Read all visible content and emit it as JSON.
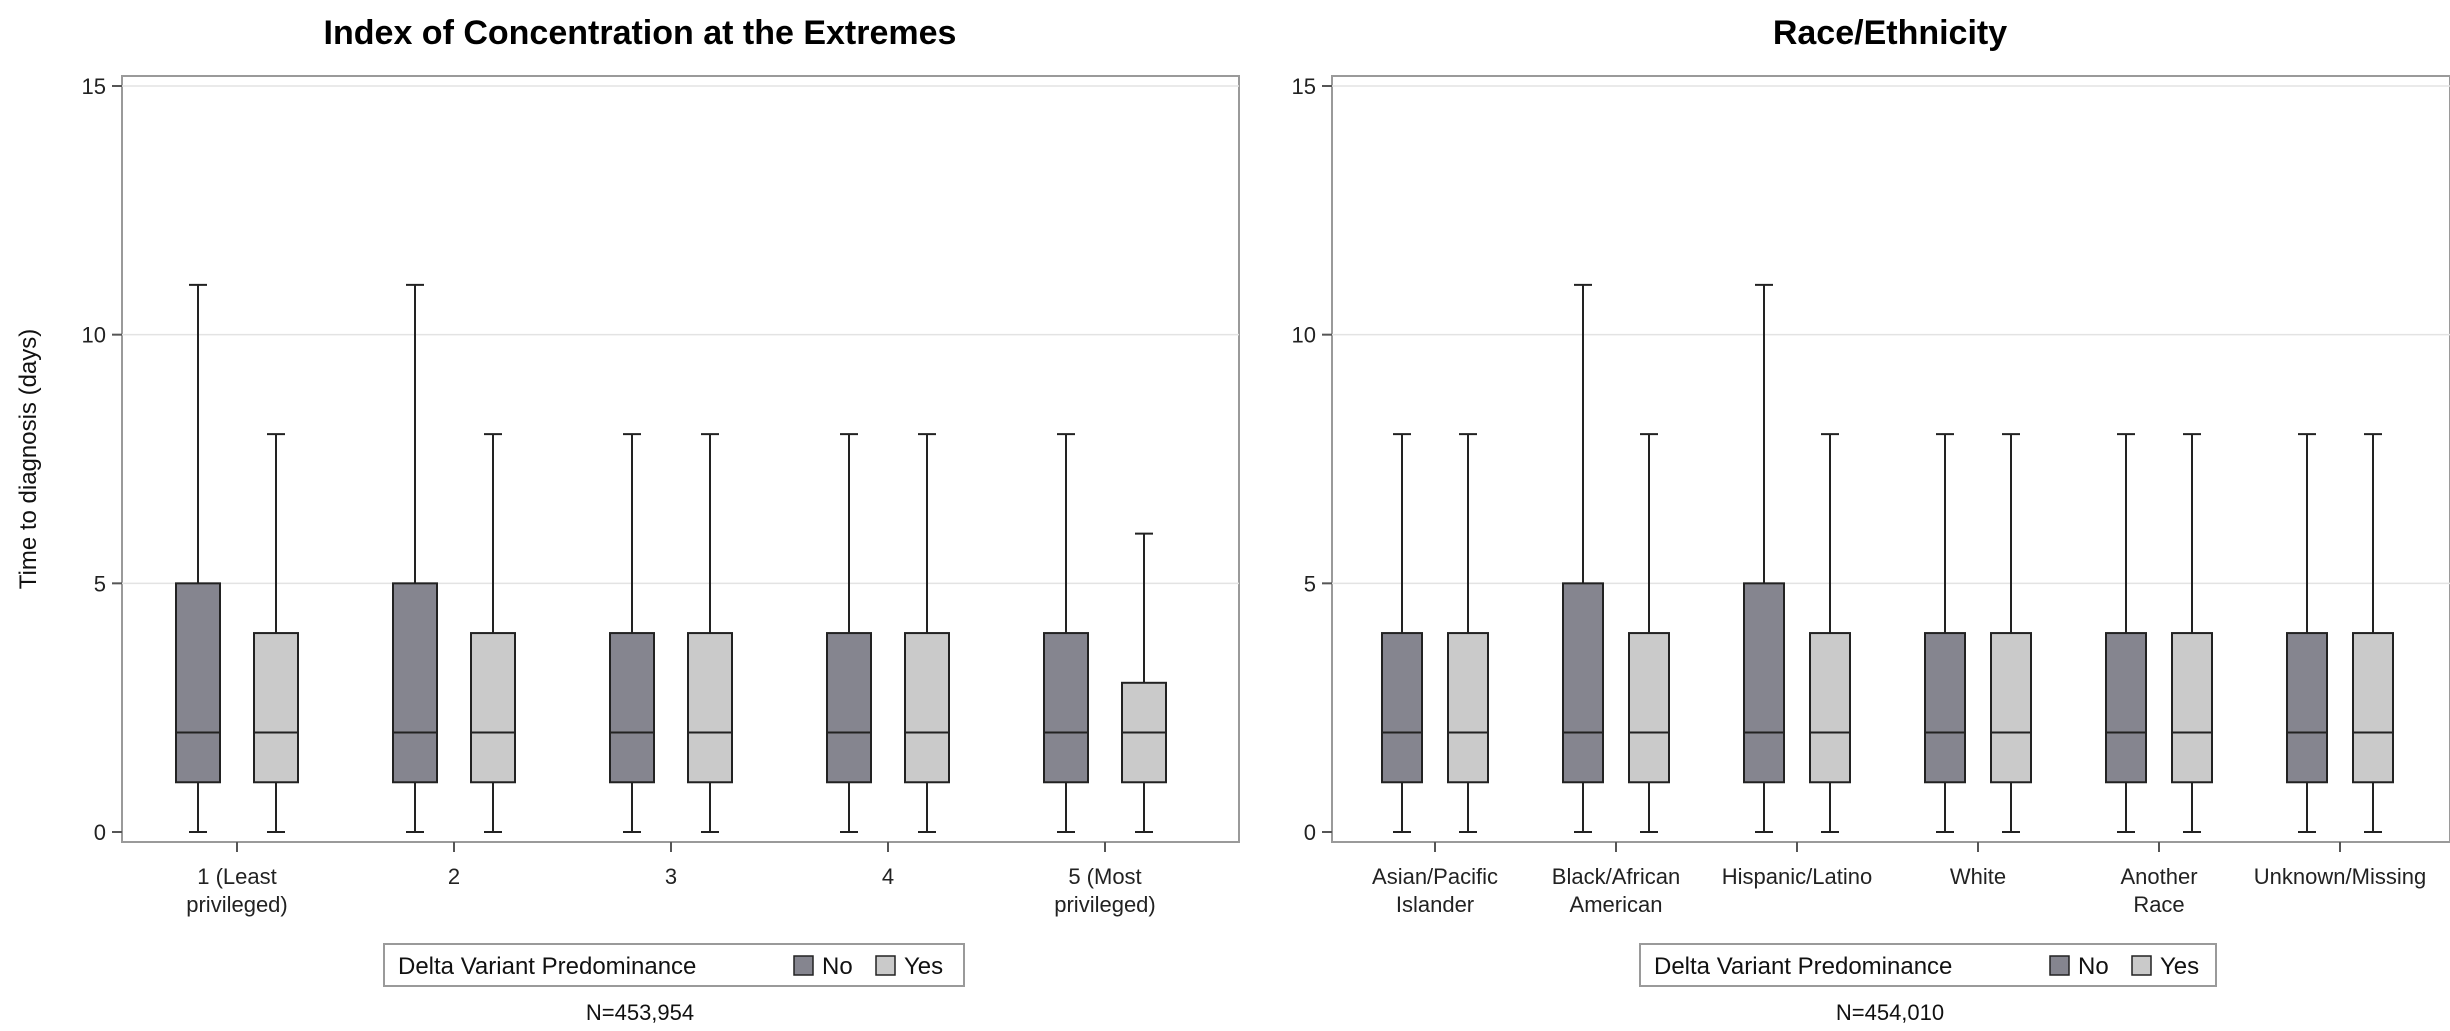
{
  "chart_data": [
    {
      "type": "boxplot",
      "title": "Index of Concentration at the Extremes",
      "ylabel": "Time to diagnosis (days)",
      "xlabel": "",
      "ylim": [
        0,
        15
      ],
      "yticks": [
        0,
        5,
        10,
        15
      ],
      "grid": true,
      "categories": [
        [
          "1 (Least",
          "privileged)"
        ],
        [
          "2"
        ],
        [
          "3"
        ],
        [
          "4"
        ],
        [
          "5 (Most",
          "privileged)"
        ]
      ],
      "legend_title": "Delta Variant Predominance",
      "legend_position": "bottom",
      "series": [
        {
          "name": "No",
          "color": "#85858f",
          "boxes": [
            {
              "min": 0,
              "q1": 1,
              "median": 2,
              "q3": 5,
              "max": 11
            },
            {
              "min": 0,
              "q1": 1,
              "median": 2,
              "q3": 5,
              "max": 11
            },
            {
              "min": 0,
              "q1": 1,
              "median": 2,
              "q3": 4,
              "max": 8
            },
            {
              "min": 0,
              "q1": 1,
              "median": 2,
              "q3": 4,
              "max": 8
            },
            {
              "min": 0,
              "q1": 1,
              "median": 2,
              "q3": 4,
              "max": 8
            }
          ]
        },
        {
          "name": "Yes",
          "color": "#cacaca",
          "boxes": [
            {
              "min": 0,
              "q1": 1,
              "median": 2,
              "q3": 4,
              "max": 8
            },
            {
              "min": 0,
              "q1": 1,
              "median": 2,
              "q3": 4,
              "max": 8
            },
            {
              "min": 0,
              "q1": 1,
              "median": 2,
              "q3": 4,
              "max": 8
            },
            {
              "min": 0,
              "q1": 1,
              "median": 2,
              "q3": 4,
              "max": 8
            },
            {
              "min": 0,
              "q1": 1,
              "median": 2,
              "q3": 3,
              "max": 6
            }
          ]
        }
      ],
      "note": "N=453,954"
    },
    {
      "type": "boxplot",
      "title": "Race/Ethnicity",
      "ylabel": "",
      "xlabel": "",
      "ylim": [
        0,
        15
      ],
      "yticks": [
        0,
        5,
        10,
        15
      ],
      "grid": true,
      "categories": [
        [
          "Asian/Pacific",
          "Islander"
        ],
        [
          "Black/African",
          "American"
        ],
        [
          "Hispanic/Latino"
        ],
        [
          "White"
        ],
        [
          "Another",
          "Race"
        ],
        [
          "Unknown/Missing"
        ]
      ],
      "legend_title": "Delta Variant Predominance",
      "legend_position": "bottom",
      "series": [
        {
          "name": "No",
          "color": "#85858f",
          "boxes": [
            {
              "min": 0,
              "q1": 1,
              "median": 2,
              "q3": 4,
              "max": 8
            },
            {
              "min": 0,
              "q1": 1,
              "median": 2,
              "q3": 5,
              "max": 11
            },
            {
              "min": 0,
              "q1": 1,
              "median": 2,
              "q3": 5,
              "max": 11
            },
            {
              "min": 0,
              "q1": 1,
              "median": 2,
              "q3": 4,
              "max": 8
            },
            {
              "min": 0,
              "q1": 1,
              "median": 2,
              "q3": 4,
              "max": 8
            },
            {
              "min": 0,
              "q1": 1,
              "median": 2,
              "q3": 4,
              "max": 8
            }
          ]
        },
        {
          "name": "Yes",
          "color": "#cacaca",
          "boxes": [
            {
              "min": 0,
              "q1": 1,
              "median": 2,
              "q3": 4,
              "max": 8
            },
            {
              "min": 0,
              "q1": 1,
              "median": 2,
              "q3": 4,
              "max": 8
            },
            {
              "min": 0,
              "q1": 1,
              "median": 2,
              "q3": 4,
              "max": 8
            },
            {
              "min": 0,
              "q1": 1,
              "median": 2,
              "q3": 4,
              "max": 8
            },
            {
              "min": 0,
              "q1": 1,
              "median": 2,
              "q3": 4,
              "max": 8
            },
            {
              "min": 0,
              "q1": 1,
              "median": 2,
              "q3": 4,
              "max": 8
            }
          ]
        }
      ],
      "note": "N=454,010"
    }
  ]
}
